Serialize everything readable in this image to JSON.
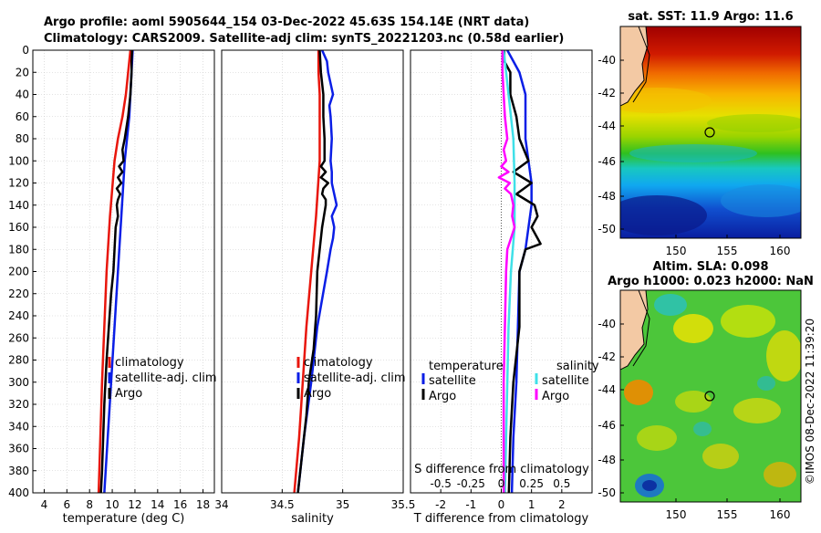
{
  "title_line1": "Argo profile: aoml 5905644_154 03-Dec-2022 45.63S 154.14E (NRT data)",
  "title_line2": "Climatology: CARS2009. Satellite-adj clim: synTS_20221203.nc (0.58d earlier)",
  "colors": {
    "climatology": "#e8160c",
    "satellite": "#0a1ee6",
    "argo": "#000000",
    "sat_salinity": "#3fe0e8",
    "argo_salinity": "#ff00ff"
  },
  "chart_data": [
    {
      "type": "line",
      "name": "temperature-profile",
      "xlabel": "temperature (deg C)",
      "xlim": [
        3,
        19
      ],
      "ylim": [
        400,
        0
      ],
      "xticks": [
        "4",
        "6",
        "8",
        "10",
        "12",
        "14",
        "16",
        "18"
      ],
      "xtick_values": [
        4,
        6,
        8,
        10,
        12,
        14,
        16,
        18
      ],
      "yticks": [
        "0",
        "20",
        "40",
        "60",
        "80",
        "100",
        "120",
        "140",
        "160",
        "180",
        "200",
        "220",
        "240",
        "260",
        "280",
        "300",
        "320",
        "340",
        "360",
        "380",
        "400"
      ],
      "ytick_values": [
        0,
        20,
        40,
        60,
        80,
        100,
        120,
        140,
        160,
        180,
        200,
        220,
        240,
        260,
        280,
        300,
        320,
        340,
        360,
        380,
        400
      ],
      "series": [
        {
          "name": "climatology",
          "color_key": "climatology",
          "depth": [
            0,
            20,
            40,
            60,
            80,
            100,
            150,
            200,
            250,
            300,
            350,
            400
          ],
          "values": [
            11.6,
            11.4,
            11.2,
            10.9,
            10.5,
            10.2,
            9.8,
            9.5,
            9.3,
            9.1,
            8.95,
            8.8
          ]
        },
        {
          "name": "satellite-adj. clim",
          "color_key": "satellite",
          "depth": [
            0,
            20,
            40,
            60,
            80,
            100,
            150,
            200,
            250,
            300,
            350,
            400
          ],
          "values": [
            11.8,
            11.7,
            11.6,
            11.5,
            11.3,
            11.1,
            10.8,
            10.5,
            10.2,
            9.9,
            9.6,
            9.3
          ]
        },
        {
          "name": "Argo",
          "color_key": "argo",
          "depth": [
            0,
            10,
            20,
            40,
            60,
            80,
            90,
            100,
            105,
            110,
            115,
            120,
            125,
            130,
            135,
            140,
            150,
            160,
            180,
            200,
            220,
            250,
            280,
            300,
            320,
            350,
            380,
            400
          ],
          "values": [
            11.75,
            11.7,
            11.7,
            11.6,
            11.4,
            11.1,
            10.9,
            11.0,
            10.6,
            10.9,
            10.5,
            10.8,
            10.4,
            10.7,
            10.5,
            10.4,
            10.5,
            10.3,
            10.2,
            10.1,
            9.9,
            9.7,
            9.5,
            9.4,
            9.3,
            9.2,
            9.1,
            9.0
          ]
        }
      ],
      "legend": [
        "climatology",
        "satellite-adj. clim",
        "Argo"
      ]
    },
    {
      "type": "line",
      "name": "salinity-profile",
      "xlabel": "salinity",
      "xlim": [
        34,
        35.5
      ],
      "ylim": [
        400,
        0
      ],
      "xticks": [
        "34",
        "34.5",
        "35",
        "35.5"
      ],
      "xtick_values": [
        34,
        34.5,
        35,
        35.5
      ],
      "series": [
        {
          "name": "climatology",
          "color_key": "climatology",
          "depth": [
            0,
            20,
            40,
            60,
            80,
            100,
            150,
            200,
            250,
            300,
            350,
            400
          ],
          "values": [
            34.8,
            34.8,
            34.81,
            34.81,
            34.81,
            34.81,
            34.78,
            34.74,
            34.7,
            34.67,
            34.64,
            34.6
          ]
        },
        {
          "name": "satellite-adj. clim",
          "color_key": "satellite",
          "depth": [
            0,
            10,
            20,
            40,
            50,
            60,
            80,
            100,
            110,
            120,
            130,
            140,
            150,
            160,
            170,
            180,
            200,
            250,
            300,
            350,
            400
          ],
          "values": [
            34.83,
            34.87,
            34.88,
            34.92,
            34.89,
            34.9,
            34.91,
            34.9,
            34.91,
            34.91,
            34.93,
            34.95,
            34.91,
            34.93,
            34.92,
            34.9,
            34.87,
            34.79,
            34.74,
            34.68,
            34.63
          ]
        },
        {
          "name": "Argo",
          "color_key": "argo",
          "depth": [
            0,
            20,
            40,
            60,
            80,
            100,
            105,
            110,
            115,
            120,
            125,
            130,
            135,
            140,
            160,
            180,
            200,
            240,
            270,
            300,
            330,
            360,
            380,
            400
          ],
          "values": [
            34.81,
            34.82,
            34.84,
            34.84,
            34.85,
            34.85,
            34.82,
            34.86,
            34.82,
            34.88,
            34.84,
            34.83,
            34.86,
            34.86,
            34.83,
            34.81,
            34.79,
            34.78,
            34.76,
            34.72,
            34.7,
            34.67,
            34.65,
            34.63
          ]
        }
      ],
      "legend": [
        "climatology",
        "satellite-adj. clim",
        "Argo"
      ]
    },
    {
      "type": "line",
      "name": "difference-profile",
      "xlabel": "T difference from climatology",
      "xlabel_top": "S difference from climatology",
      "xlim": [
        -3,
        3
      ],
      "ylim": [
        400,
        0
      ],
      "xticks": [
        "-2",
        "-1",
        "0",
        "1",
        "2"
      ],
      "xtick_values": [
        -2,
        -1,
        0,
        1,
        2
      ],
      "sticks": [
        "-0.5",
        "-0.25",
        "0",
        "0.25",
        "0.5"
      ],
      "stick_values": [
        -0.5,
        -0.25,
        0,
        0.25,
        0.5
      ],
      "series": [
        {
          "name": "temperature satellite",
          "color_key": "satellite",
          "depth": [
            0,
            10,
            20,
            30,
            40,
            60,
            80,
            100,
            120,
            140,
            160,
            180,
            200,
            250,
            300,
            350,
            400
          ],
          "values": [
            0.2,
            0.4,
            0.6,
            0.7,
            0.8,
            0.8,
            0.8,
            0.9,
            1.0,
            1.0,
            0.9,
            0.8,
            0.6,
            0.55,
            0.5,
            0.4,
            0.35
          ]
        },
        {
          "name": "temperature Argo",
          "color_key": "argo",
          "depth": [
            0,
            10,
            20,
            40,
            60,
            80,
            100,
            110,
            120,
            130,
            140,
            150,
            160,
            170,
            175,
            180,
            200,
            250,
            300,
            350,
            400
          ],
          "values": [
            0.1,
            0.1,
            0.3,
            0.3,
            0.5,
            0.6,
            0.9,
            0.4,
            1.0,
            0.5,
            1.1,
            1.2,
            1.0,
            1.2,
            1.3,
            0.8,
            0.6,
            0.6,
            0.4,
            0.3,
            0.25
          ]
        },
        {
          "name": "salinity satellite",
          "color_key": "sat_salinity",
          "depth": [
            0,
            40,
            80,
            120,
            160,
            200,
            250,
            300,
            350,
            400
          ],
          "values": [
            0.02,
            0.06,
            0.1,
            0.11,
            0.11,
            0.08,
            0.06,
            0.05,
            0.04,
            0.03
          ]
        },
        {
          "name": "salinity Argo",
          "color_key": "argo_salinity",
          "depth": [
            0,
            20,
            40,
            60,
            80,
            90,
            100,
            105,
            110,
            115,
            120,
            125,
            130,
            140,
            150,
            160,
            170,
            180,
            200,
            250,
            300,
            350,
            400
          ],
          "values": [
            0.01,
            0.01,
            0.02,
            0.03,
            0.05,
            0.02,
            0.04,
            0.0,
            0.06,
            -0.02,
            0.07,
            0.03,
            0.08,
            0.1,
            0.09,
            0.11,
            0.08,
            0.05,
            0.04,
            0.03,
            0.02,
            0.02,
            0.02
          ]
        }
      ],
      "legend_temperature": {
        "header": "temperature",
        "items": [
          "satellite",
          "Argo"
        ]
      },
      "legend_salinity": {
        "header": "salinity",
        "items": [
          "satellite",
          "Argo"
        ]
      }
    }
  ],
  "maps": [
    {
      "name": "sst-map",
      "title": "sat. SST: 11.9 Argo: 11.6",
      "title2": "",
      "lat_ticks": [
        "-40",
        "-42",
        "-44",
        "-46",
        "-48",
        "-50"
      ],
      "lon_ticks": [
        "150",
        "155",
        "160"
      ]
    },
    {
      "name": "sla-map",
      "title": "Altim. SLA: 0.098",
      "title2": "Argo h1000: 0.023 h2000: NaN",
      "lat_ticks": [
        "-40",
        "-42",
        "-44",
        "-46",
        "-48",
        "-50"
      ],
      "lon_ticks": [
        "150",
        "155",
        "160"
      ]
    }
  ],
  "copyright": "©IMOS 08-Dec-2022 11:39:20"
}
